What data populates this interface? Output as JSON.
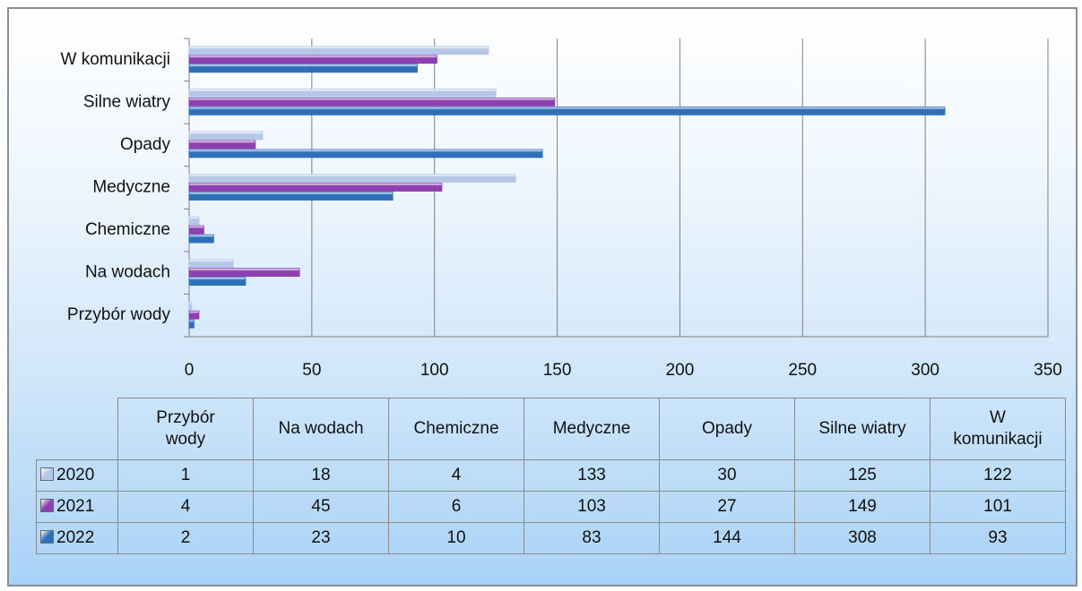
{
  "chart_data": {
    "type": "bar",
    "orientation": "horizontal",
    "categories": [
      "Przybór wody",
      "Na wodach",
      "Chemiczne",
      "Medyczne",
      "Opady",
      "Silne wiatry",
      "W komunikacji"
    ],
    "series": [
      {
        "name": "2020",
        "color": "#b4c7e7",
        "values": [
          1,
          18,
          4,
          133,
          30,
          125,
          122
        ]
      },
      {
        "name": "2021",
        "color": "#8e3fb0",
        "values": [
          4,
          45,
          6,
          103,
          27,
          149,
          101
        ]
      },
      {
        "name": "2022",
        "color": "#2e6fba",
        "values": [
          2,
          23,
          10,
          83,
          144,
          308,
          93
        ]
      }
    ],
    "xlim": [
      0,
      350
    ],
    "xticks": [
      0,
      50,
      100,
      150,
      200,
      250,
      300,
      350
    ],
    "grid": true
  }
}
